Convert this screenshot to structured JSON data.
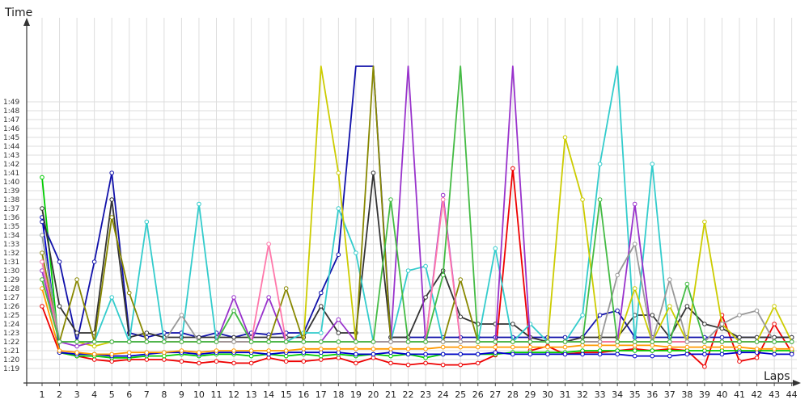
{
  "chart_data": {
    "type": "line",
    "title": "",
    "ylabel": "Time",
    "xlabel": "Laps",
    "y_unit": "minutes:seconds (lap time, values in seconds)",
    "x": [
      1,
      2,
      3,
      4,
      5,
      6,
      7,
      8,
      9,
      10,
      11,
      12,
      13,
      14,
      15,
      16,
      17,
      18,
      19,
      20,
      21,
      22,
      23,
      24,
      25,
      26,
      27,
      28,
      29,
      30,
      31,
      32,
      33,
      34,
      35,
      36,
      37,
      38,
      39,
      40,
      41,
      42,
      43,
      44
    ],
    "y_ticks": [
      "1:19",
      "1:20",
      "1:21",
      "1:22",
      "1:23",
      "1:24",
      "1:25",
      "1:26",
      "1:27",
      "1:28",
      "1:29",
      "1:30",
      "1:31",
      "1:32",
      "1:33",
      "1:34",
      "1:35",
      "1:36",
      "1:37",
      "1:38",
      "1:39",
      "1:40",
      "1:41",
      "1:42",
      "1:43",
      "1:44",
      "1:45",
      "1:46",
      "1:47",
      "1:48",
      "1:49"
    ],
    "ylim": [
      78,
      113
    ],
    "grid": true,
    "legend": "none",
    "series": [
      {
        "color": "#ee0000",
        "values": [
          86,
          80.8,
          80.4,
          80,
          79.8,
          80,
          80,
          80,
          79.8,
          79.6,
          79.8,
          79.6,
          79.6,
          80.2,
          79.8,
          79.8,
          80,
          80.2,
          79.6,
          80.2,
          79.6,
          79.4,
          79.6,
          79.4,
          79.4,
          79.6,
          80.5,
          101.5,
          81,
          81.5,
          80.6,
          80.8,
          80.8,
          81,
          81.2,
          81,
          81.2,
          81,
          79.2,
          85,
          79.8,
          80.2,
          84,
          80.8
        ]
      },
      {
        "color": "#00cc00",
        "values": [
          100.5,
          80.8,
          80.4,
          80.4,
          80.2,
          80.2,
          80.4,
          80.4,
          80.6,
          80.4,
          80.6,
          80.6,
          80.4,
          80.6,
          80.4,
          80.6,
          80.4,
          80.6,
          80.4,
          80.6,
          80.4,
          80.6,
          80.2,
          80.6,
          80.6,
          80.6,
          80.6,
          80.8,
          80.8,
          80.8,
          80.8,
          81,
          81,
          81,
          81,
          81,
          81,
          81,
          81,
          81,
          81,
          81,
          81,
          81
        ]
      },
      {
        "color": "#0000cc",
        "values": [
          96,
          80.8,
          80.6,
          80.6,
          80.4,
          80.4,
          80.6,
          80.8,
          80.8,
          80.6,
          80.8,
          80.8,
          80.8,
          80.6,
          80.8,
          80.8,
          80.8,
          80.8,
          80.6,
          80.6,
          80.8,
          80.6,
          80.6,
          80.6,
          80.6,
          80.6,
          80.8,
          80.6,
          80.6,
          80.6,
          80.6,
          80.6,
          80.6,
          80.6,
          80.4,
          80.4,
          80.4,
          80.6,
          80.6,
          80.6,
          80.8,
          80.8,
          80.6,
          80.6
        ]
      },
      {
        "color": "#ff9900",
        "values": [
          88,
          81,
          80.8,
          80.6,
          80.6,
          80.8,
          80.8,
          80.8,
          81,
          80.8,
          81,
          81,
          81,
          81,
          81,
          81.2,
          81.2,
          81.2,
          81.2,
          81.2,
          81.2,
          81.2,
          81.2,
          81.4,
          81.4,
          81.4,
          81.4,
          81.4,
          81.4,
          81.4,
          81.4,
          81.6,
          81.6,
          81.6,
          81.6,
          81.6,
          81.4,
          81.4,
          81.4,
          81.4,
          81.4,
          81.2,
          81.2,
          81.2
        ]
      },
      {
        "color": "#1111aa",
        "values": [
          95.5,
          91,
          82,
          91,
          101,
          83,
          82.5,
          83,
          83,
          82.5,
          83,
          82.5,
          83,
          82.8,
          83,
          83,
          87.5,
          91.8,
          113,
          113,
          82.5,
          82.5,
          82.5,
          82.5,
          82.5,
          82.5,
          82.5,
          82.5,
          82.5,
          82.5,
          82.5,
          82.5,
          85,
          85.5,
          82.5,
          82.5,
          82.5,
          82.5,
          82.5,
          82.5,
          82.5,
          82.5,
          82.5,
          82.5
        ]
      },
      {
        "color": "#333333",
        "values": [
          97,
          86,
          83,
          83,
          98,
          82.5,
          83,
          82.5,
          82.5,
          82.5,
          82.5,
          82.5,
          82.5,
          82.5,
          82.5,
          82.5,
          86,
          83,
          83,
          101,
          82.5,
          82.5,
          87,
          90,
          84.8,
          84,
          84,
          84,
          82.5,
          82,
          82,
          82.5,
          82.5,
          82.5,
          85,
          85,
          82.5,
          86,
          84,
          83.5,
          82.5,
          82.5,
          82.5,
          82.5
        ]
      },
      {
        "color": "#33cccc",
        "values": [
          94,
          82,
          82,
          82,
          87,
          82,
          95.5,
          82,
          82,
          97.5,
          82,
          82,
          82,
          82,
          82,
          83,
          83,
          97,
          92,
          82,
          82,
          90,
          90.5,
          82,
          82,
          82,
          92.5,
          82,
          84,
          82,
          82,
          85,
          102,
          113,
          82,
          102,
          82,
          82,
          82,
          82,
          82,
          82,
          82,
          82
        ]
      },
      {
        "color": "#cccc00",
        "values": [
          89,
          82,
          82,
          81.5,
          82,
          82,
          82,
          82,
          82,
          82,
          82,
          82,
          82,
          82,
          82,
          82,
          113,
          101,
          82,
          82,
          82,
          82,
          82,
          82,
          82,
          82,
          82,
          82,
          82,
          82,
          105,
          98,
          82,
          82,
          88,
          82,
          86,
          82,
          95.5,
          84,
          82,
          82,
          86,
          82
        ]
      },
      {
        "color": "#9933cc",
        "values": [
          90,
          82,
          81.5,
          82,
          82,
          82,
          82,
          82,
          82,
          82,
          82,
          87,
          82,
          87,
          82,
          82,
          82,
          84.5,
          82,
          82,
          82,
          113,
          82,
          98.5,
          82,
          82,
          82,
          113,
          82,
          82,
          82,
          82,
          82,
          82,
          97.5,
          82,
          82,
          82,
          82,
          82,
          82,
          82,
          82,
          82
        ]
      },
      {
        "color": "#888800",
        "values": [
          92,
          82,
          89,
          82,
          96,
          87.5,
          82,
          82,
          82,
          82,
          82,
          82,
          82,
          82,
          88,
          82,
          82,
          82,
          82,
          113,
          82,
          82,
          82,
          82,
          89,
          82,
          82,
          82,
          82,
          82,
          82,
          82,
          82,
          82,
          82,
          82,
          82,
          82,
          82,
          82,
          82,
          82,
          82,
          82
        ]
      },
      {
        "color": "#ff77aa",
        "values": [
          91,
          82,
          82,
          82,
          82,
          82,
          82,
          82,
          82,
          82,
          82,
          82,
          82,
          93,
          82,
          82,
          82,
          82,
          82,
          82,
          82,
          82,
          82,
          98,
          82,
          82,
          82,
          82,
          82,
          82,
          82,
          82,
          82,
          82,
          82,
          82,
          82,
          82,
          82,
          82,
          82,
          82,
          82,
          82
        ]
      },
      {
        "color": "#999999",
        "values": [
          94,
          82,
          82,
          82,
          82,
          82,
          82,
          82,
          85,
          82,
          82,
          82,
          82,
          82,
          82,
          82,
          82,
          82,
          82,
          82,
          82,
          82,
          82,
          82,
          82,
          82,
          82,
          82,
          82,
          82,
          82,
          82,
          82,
          89.5,
          93,
          82,
          89,
          82,
          82,
          84,
          85,
          85.5,
          82,
          82
        ]
      },
      {
        "color": "#44bb44",
        "values": [
          89,
          82,
          82,
          82,
          82,
          82,
          82,
          82,
          82,
          82,
          82,
          85.5,
          82,
          82,
          82,
          82,
          82,
          82,
          82,
          82,
          98,
          82,
          82,
          89.5,
          113,
          82,
          82,
          82,
          82,
          82,
          82,
          82,
          98,
          82,
          82,
          82,
          82,
          88.5,
          82,
          82,
          82,
          82,
          82,
          82
        ]
      }
    ]
  }
}
